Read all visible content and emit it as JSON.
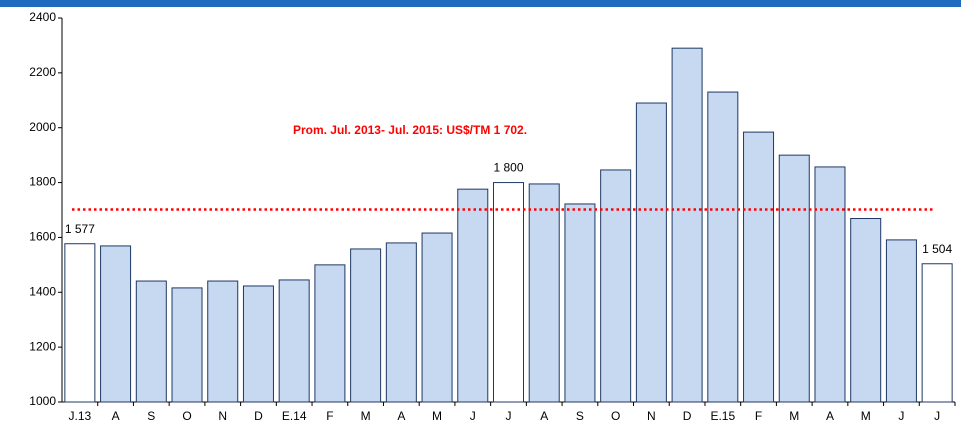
{
  "chart_data": {
    "type": "bar",
    "annotation": "Prom. Jul. 2013- Jul. 2015: US$/TM 1 702.",
    "categories": [
      "J.13",
      "A",
      "S",
      "O",
      "N",
      "D",
      "E.14",
      "F",
      "M",
      "A",
      "M",
      "J",
      "J",
      "A",
      "S",
      "O",
      "N",
      "D",
      "E.15",
      "F",
      "M",
      "A",
      "M",
      "J",
      "J"
    ],
    "values": [
      1577,
      1569,
      1441,
      1416,
      1441,
      1423,
      1445,
      1500,
      1558,
      1580,
      1616,
      1776,
      1800,
      1795,
      1722,
      1846,
      2090,
      2290,
      2130,
      1984,
      1900,
      1857,
      1669,
      1591,
      1504
    ],
    "value_labels": [
      "1 577",
      null,
      null,
      null,
      null,
      null,
      null,
      null,
      null,
      null,
      null,
      null,
      "1 800",
      null,
      null,
      null,
      null,
      null,
      null,
      null,
      null,
      null,
      null,
      null,
      "1 504"
    ],
    "colors": [
      "#ffffff",
      "#c6d9f1",
      "#c6d9f1",
      "#c6d9f1",
      "#c6d9f1",
      "#c6d9f1",
      "#c6d9f1",
      "#c6d9f1",
      "#c6d9f1",
      "#c6d9f1",
      "#c6d9f1",
      "#c6d9f1",
      "#ffffff",
      "#c6d9f1",
      "#c6d9f1",
      "#c6d9f1",
      "#c6d9f1",
      "#c6d9f1",
      "#c6d9f1",
      "#c6d9f1",
      "#c6d9f1",
      "#c6d9f1",
      "#c6d9f1",
      "#c6d9f1",
      "#ffffff"
    ],
    "reference_line": {
      "value": 1702,
      "color": "#ff0000"
    },
    "ylim": [
      1000,
      2400
    ],
    "yticks": [
      1000,
      1200,
      1400,
      1600,
      1800,
      2000,
      2200,
      2400
    ]
  }
}
